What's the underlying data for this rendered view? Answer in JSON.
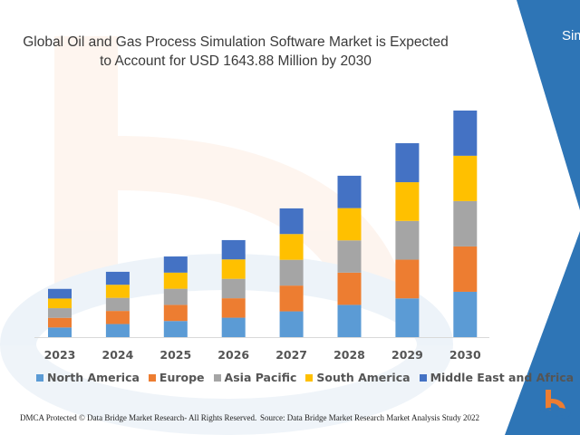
{
  "title_line1": "Global Oil and Gas Process Simulation Software Market is Expected",
  "title_line2": "to Account for USD 1643.88 Million by 2030",
  "side_text": "Sim",
  "footer_left": "DMCA Protected © Data Bridge Market Research- All Rights Reserved.",
  "footer_right": "Source: Data Bridge Market Research Market Analysis Study 2022",
  "colors": {
    "accent_blue": "#2e75b6",
    "logo_orange": "#ed7d31"
  },
  "chart_data": {
    "type": "bar",
    "stacked": true,
    "title": "Global Oil and Gas Process Simulation Software Market is Expected to Account for USD 1643.88 Million by 2030",
    "categories": [
      "2023",
      "2024",
      "2025",
      "2026",
      "2027",
      "2028",
      "2029",
      "2030"
    ],
    "series": [
      {
        "name": "North America",
        "color": "#5b9bd5",
        "values": [
          70,
          95,
          117,
          141,
          187,
          234,
          281,
          329
        ]
      },
      {
        "name": "Europe",
        "color": "#ed7d31",
        "values": [
          70,
          95,
          117,
          141,
          187,
          234,
          281,
          329
        ]
      },
      {
        "name": "Asia Pacific",
        "color": "#a5a5a5",
        "values": [
          70,
          95,
          117,
          141,
          187,
          234,
          281,
          329
        ]
      },
      {
        "name": "South America",
        "color": "#ffc000",
        "values": [
          70,
          95,
          117,
          141,
          187,
          234,
          281,
          329
        ]
      },
      {
        "name": "Middle East and Africa",
        "color": "#4472c4",
        "values": [
          70,
          94,
          117,
          140,
          186,
          235,
          283,
          328
        ]
      }
    ],
    "ylim": [
      0,
      1700
    ],
    "grid": false,
    "y_axis_shown": false,
    "legend_position": "bottom"
  }
}
